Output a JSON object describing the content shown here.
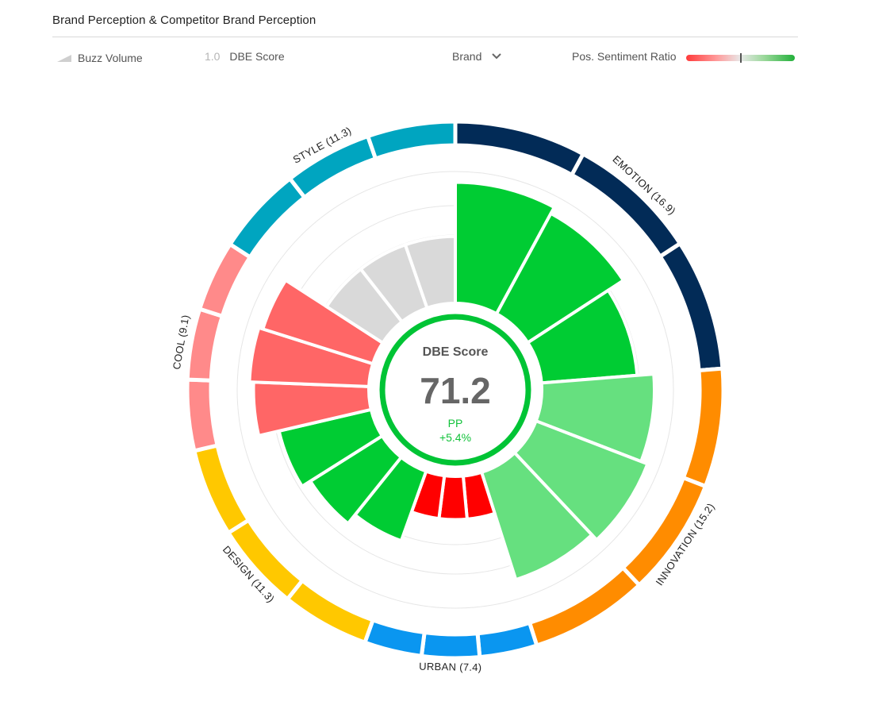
{
  "header": {
    "title": "Brand Perception & Competitor Brand Perception"
  },
  "legend": {
    "buzz_volume_label": "Buzz Volume",
    "buzz_icon": "triangle-icon",
    "dbe_number": "1.0",
    "dbe_label": "DBE Score",
    "brand_dropdown_value": "Brand",
    "chevron_icon": "chevron-down-icon",
    "sentiment_label": "Pos. Sentiment Ratio"
  },
  "center": {
    "title": "DBE Score",
    "value": "71.2",
    "pp_label": "PP",
    "pp_change": "+5.4%"
  },
  "chart_data": {
    "type": "radial-bar",
    "categories": [
      {
        "name": "EMOTION",
        "weight": 16.9,
        "label": "EMOTION (16.9)",
        "ring_color": "#022b57",
        "bar_color": "#00cc33",
        "sentiment": "positive",
        "bars": [
          0.94,
          0.89,
          0.76
        ]
      },
      {
        "name": "INNOVATION",
        "weight": 15.2,
        "label": "INNOVATION (15.2)",
        "ring_color": "#ff8c00",
        "bar_color": "#66e07f",
        "sentiment": "slightly-positive",
        "bars": [
          0.88,
          0.93,
          0.88
        ]
      },
      {
        "name": "URBAN",
        "weight": 7.4,
        "label": "URBAN (7.4)",
        "ring_color": "#0a96f0",
        "bar_color": "#ff0000",
        "sentiment": "negative",
        "bars": [
          0.38,
          0.38,
          0.38
        ]
      },
      {
        "name": "DESIGN",
        "weight": 11.3,
        "label": "DESIGN (11.3)",
        "ring_color": "#ffc800",
        "bar_color": "#00cc33",
        "sentiment": "positive",
        "bars": [
          0.6,
          0.68,
          0.75
        ]
      },
      {
        "name": "COOL",
        "weight": 9.1,
        "label": "COOL (9.1)",
        "ring_color": "#ff8a8a",
        "bar_color": "#ff6666",
        "sentiment": "slightly-negative",
        "bars": [
          0.9,
          0.93,
          0.9
        ]
      },
      {
        "name": "STYLE",
        "weight": 11.3,
        "label": "STYLE (11.3)",
        "ring_color": "#00a5c0",
        "bar_color": "#d9d9d9",
        "sentiment": "neutral",
        "bars": [
          0.55,
          0.55,
          0.55
        ]
      }
    ]
  }
}
